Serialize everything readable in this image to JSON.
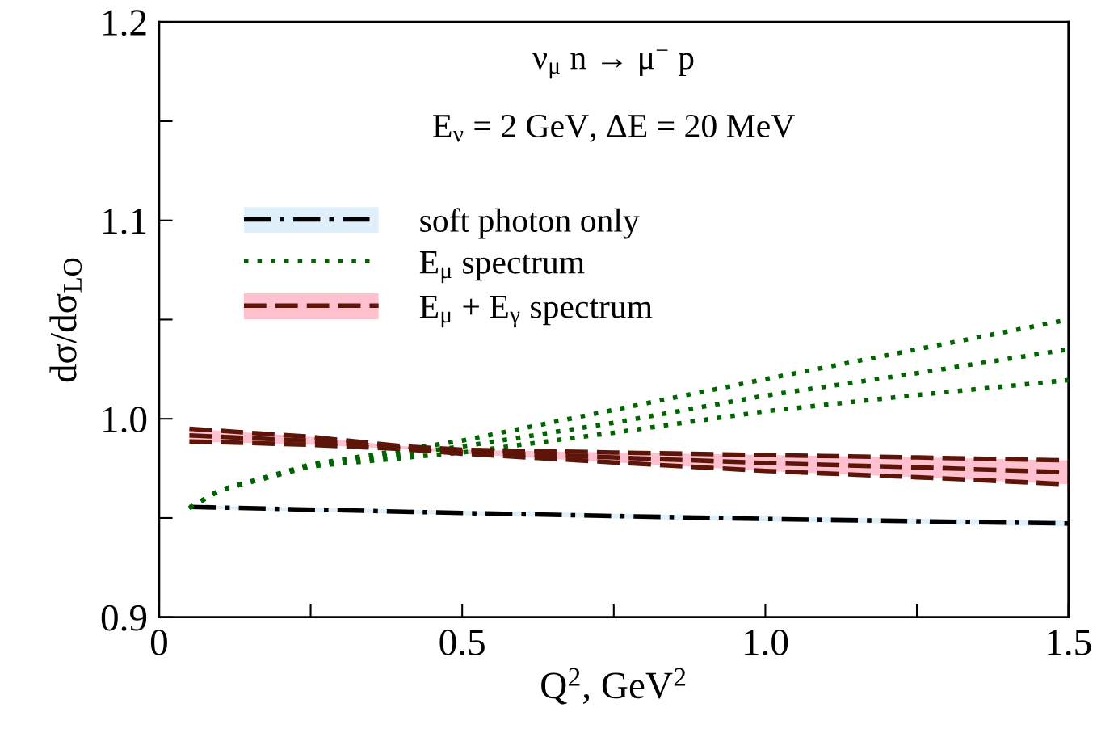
{
  "chart_data": {
    "type": "line",
    "xlabel": "Q$^{2}$, GeV$^{2}$",
    "ylabel": "dσ/dσ$_{LO}$",
    "annotations": [
      "ν$_{μ}$ n → μ$^{−}$ p",
      "E$_{ν}$ = 2 GeV, ΔE = 20 MeV"
    ],
    "xlim": [
      0,
      1.5
    ],
    "ylim": [
      0.9,
      1.2
    ],
    "xticks": [
      0,
      0.5,
      {
        "value": 1,
        "label": "1.0"
      },
      1.5
    ],
    "yticks": [
      0.9,
      {
        "value": 1,
        "label": "1.0"
      },
      1.1,
      1.2
    ],
    "grid": false,
    "legend": "top left",
    "marker": "none",
    "series": [
      {
        "name": "soft photon only",
        "color": "#000000",
        "colors": [
          "#dff0fb",
          "#dff0fb",
          "#dff0fb",
          "#dff0fb"
        ],
        "line_style": "dashdot",
        "x": [
          0.05,
          0.5,
          1.0,
          1.5
        ],
        "values": [
          0.9556,
          0.9525,
          0.9495,
          0.9472
        ],
        "lower": [
          0.9548,
          0.9514,
          0.9482,
          0.9457
        ],
        "upper": [
          0.9564,
          0.9536,
          0.9508,
          0.9487
        ]
      },
      {
        "name": "E$_{μ}$ spectrum",
        "color": "#006400",
        "line_style": "dotted",
        "x": [
          0.05,
          0.1,
          0.25,
          0.5,
          0.75,
          1.0,
          1.25,
          1.5
        ],
        "values": [
          0.955,
          0.964,
          0.9765,
          0.986,
          0.998,
          1.0117,
          1.023,
          1.035
        ]
      },
      {
        "color": "#006400",
        "line_style": "dotted",
        "x": [
          0.05,
          0.1,
          0.25,
          0.5,
          0.75,
          1.0,
          1.25,
          1.5
        ],
        "values": [
          0.955,
          0.964,
          0.977,
          0.989,
          1.0045,
          1.02,
          1.035,
          1.05
        ]
      },
      {
        "color": "#006400",
        "line_style": "dotted",
        "x": [
          0.05,
          0.1,
          0.25,
          0.5,
          0.75,
          1.0,
          1.25,
          1.5
        ],
        "values": [
          0.955,
          0.964,
          0.976,
          0.983,
          0.993,
          1.0038,
          1.012,
          1.0195
        ]
      },
      {
        "name": "E$_{μ}$ + E$_{γ}$ spectrum",
        "color": "#5c1508",
        "colors": [
          "#ffc0cf",
          "#ffc0cf",
          "#ffc0cf",
          "#ffc0cf",
          "#ffc0cf",
          "#ffc0cf",
          "#ffc0cf",
          "#ffc0cf"
        ],
        "line_style": "dashed",
        "x": [
          0.05,
          0.25,
          0.4,
          0.5,
          0.75,
          1.0,
          1.25,
          1.5
        ],
        "values": [
          0.9916,
          0.9889,
          0.9855,
          0.9834,
          0.9805,
          0.9777,
          0.9755,
          0.973
        ],
        "lower": [
          0.9886,
          0.9869,
          0.9848,
          0.9824,
          0.978,
          0.9737,
          0.9705,
          0.967
        ],
        "upper": [
          0.995,
          0.9909,
          0.9862,
          0.9844,
          0.983,
          0.9817,
          0.9805,
          0.979
        ]
      },
      {
        "color": "#5c1508",
        "line_style": "dashed",
        "x": [
          0.05,
          0.25,
          0.4,
          0.5,
          0.75,
          1.0,
          1.25,
          1.5
        ],
        "values": [
          0.9886,
          0.9869,
          0.9848,
          0.9824,
          0.978,
          0.9737,
          0.9705,
          0.967
        ]
      },
      {
        "color": "#5c1508",
        "line_style": "dashed",
        "x": [
          0.05,
          0.25,
          0.4,
          0.5,
          0.75,
          1.0,
          1.25,
          1.5
        ],
        "values": [
          0.995,
          0.9909,
          0.9862,
          0.9844,
          0.983,
          0.9817,
          0.9805,
          0.979
        ]
      }
    ]
  }
}
